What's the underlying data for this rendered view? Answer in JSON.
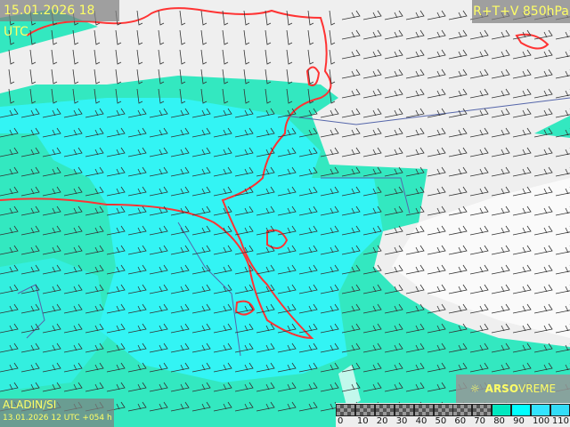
{
  "header": {
    "valid_time": "15.01.2026 18 UTC",
    "product": "R+T+V 850hPa"
  },
  "footer": {
    "model": "ALADIN/SI",
    "run": "13.01.2026 12 UTC +054 h"
  },
  "logo": {
    "brand_bold": "ARSO",
    "brand_light": "VREME",
    "icon": "sun-icon"
  },
  "legend": {
    "ticks": [
      "0",
      "10",
      "20",
      "30",
      "40",
      "50",
      "60",
      "70",
      "80",
      "90",
      "100",
      "110"
    ],
    "colors": [
      "checker",
      "checker",
      "checker",
      "checker",
      "checker",
      "checker",
      "checker",
      "checker",
      "#00e8c0",
      "#00ffff",
      "#33e4ff",
      "#33ddf8"
    ]
  },
  "colors": {
    "humid80": "#33e8c0",
    "humid90": "#33f4f4",
    "land": "#eeeeee",
    "isotherm": "#ff3333",
    "label_text": "#ffff66"
  }
}
